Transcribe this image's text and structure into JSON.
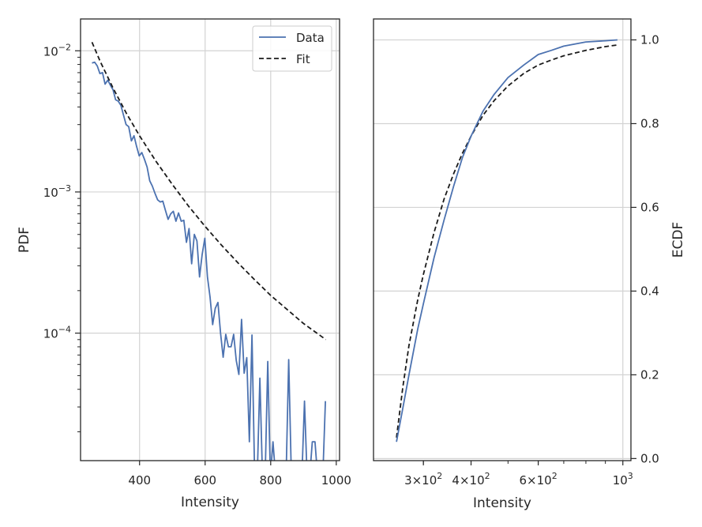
{
  "chart_data": [
    {
      "type": "line",
      "panel": "left",
      "xlabel": "Intensity",
      "ylabel": "PDF",
      "x_scale": "linear",
      "y_scale": "log",
      "xlim": [
        220,
        1010
      ],
      "ylim": [
        1.25e-05,
        0.0168
      ],
      "x_ticks": [
        400,
        600,
        800,
        1000
      ],
      "x_tick_labels": [
        "400",
        "600",
        "800",
        "1000"
      ],
      "y_ticks": [
        0.0001,
        0.001,
        0.01
      ],
      "y_tick_labels": [
        [
          "10",
          "−4"
        ],
        [
          "10",
          "−3"
        ],
        [
          "10",
          "−2"
        ]
      ],
      "grid": true,
      "legend": {
        "placement": "top-right",
        "entries": [
          "Data",
          "Fit"
        ]
      },
      "series": [
        {
          "name": "Data",
          "color": "#4c72b0",
          "style": "solid",
          "x": [
            255,
            263,
            271,
            279,
            287,
            295,
            303,
            311,
            319,
            327,
            335,
            343,
            351,
            359,
            367,
            375,
            383,
            391,
            399,
            407,
            415,
            423,
            431,
            439,
            447,
            455,
            463,
            471,
            479,
            487,
            495,
            503,
            511,
            519,
            527,
            535,
            543,
            551,
            559,
            567,
            575,
            583,
            591,
            599,
            607,
            615,
            623,
            631,
            639,
            647,
            655,
            663,
            671,
            679,
            687,
            695,
            703,
            711,
            719,
            727,
            735,
            743,
            751,
            759,
            767,
            775,
            783,
            791,
            799,
            807,
            815,
            823,
            831,
            839,
            847,
            855,
            863,
            871,
            879,
            887,
            895,
            903,
            911,
            919,
            927,
            935,
            943,
            951,
            959,
            967
          ],
          "y": [
            0.0082,
            0.0083,
            0.0078,
            0.0069,
            0.007,
            0.0058,
            0.0062,
            0.0057,
            0.0053,
            0.0045,
            0.0044,
            0.0041,
            0.0035,
            0.003,
            0.0029,
            0.0023,
            0.0025,
            0.0021,
            0.0018,
            0.0019,
            0.0017,
            0.0015,
            0.0012,
            0.0011,
            0.00098,
            0.00088,
            0.00085,
            0.00086,
            0.00074,
            0.00064,
            0.0007,
            0.00073,
            0.00062,
            0.00071,
            0.00062,
            0.00063,
            0.00044,
            0.00055,
            0.00031,
            0.0005,
            0.00045,
            0.00025,
            0.00036,
            0.00047,
            0.00025,
            0.00018,
            0.000115,
            0.00015,
            0.000165,
            0.0001,
            6.75e-05,
            9.8e-05,
            8e-05,
            8e-05,
            9.8e-05,
            6.4e-05,
            5.1e-05,
            0.000125,
            5.2e-05,
            6.7e-05,
            1.7e-05,
            9.7e-05,
            null,
            null,
            4.8e-05,
            null,
            null,
            6.3e-05,
            null,
            1.7e-05,
            null,
            null,
            null,
            null,
            null,
            6.5e-05,
            null,
            null,
            null,
            null,
            null,
            3.3e-05,
            null,
            null,
            1.7e-05,
            1.7e-05,
            null,
            null,
            null,
            3.3e-05
          ]
        },
        {
          "name": "Fit",
          "color": "#1a1a1a",
          "style": "dashed",
          "x": [
            255,
            280,
            320,
            360,
            400,
            450,
            500,
            550,
            600,
            650,
            700,
            750,
            800,
            850,
            900,
            968
          ],
          "y": [
            0.0115,
            0.0084,
            0.0054,
            0.0036,
            0.0025,
            0.00165,
            0.00113,
            0.00079,
            0.00057,
            0.00042,
            0.000315,
            0.00024,
            0.000185,
            0.000147,
            0.000117,
            9e-05
          ]
        }
      ]
    },
    {
      "type": "line",
      "panel": "right",
      "xlabel": "Intensity",
      "ylabel": "ECDF",
      "x_scale": "log",
      "y_scale": "linear",
      "xlim": [
        222,
        1050
      ],
      "ylim": [
        -0.005,
        1.05
      ],
      "x_ticks": [
        300,
        400,
        600,
        1000
      ],
      "x_tick_labels": [
        [
          "3×10",
          "2"
        ],
        [
          "4×10",
          "2"
        ],
        [
          "6×10",
          "2"
        ],
        [
          "10",
          "3"
        ]
      ],
      "y_ticks": [
        0.0,
        0.2,
        0.4,
        0.6,
        0.8,
        1.0
      ],
      "y_tick_labels": [
        "0.0",
        "0.2",
        "0.4",
        "0.6",
        "0.8",
        "1.0"
      ],
      "grid": true,
      "series": [
        {
          "name": "Data",
          "color": "#4c72b0",
          "style": "solid",
          "x": [
            255,
            265,
            275,
            290,
            300,
            320,
            340,
            360,
            380,
            400,
            430,
            460,
            500,
            550,
            600,
            650,
            700,
            800,
            900,
            968
          ],
          "y": [
            0.04,
            0.12,
            0.2,
            0.31,
            0.37,
            0.48,
            0.57,
            0.65,
            0.72,
            0.77,
            0.83,
            0.87,
            0.91,
            0.94,
            0.965,
            0.975,
            0.985,
            0.995,
            0.998,
            1.0
          ]
        },
        {
          "name": "Fit",
          "color": "#1a1a1a",
          "style": "dashed",
          "x": [
            255,
            265,
            275,
            290,
            300,
            320,
            340,
            360,
            380,
            400,
            430,
            460,
            500,
            550,
            600,
            650,
            700,
            800,
            900,
            968
          ],
          "y": [
            0.05,
            0.17,
            0.27,
            0.38,
            0.44,
            0.54,
            0.62,
            0.68,
            0.73,
            0.77,
            0.82,
            0.855,
            0.89,
            0.92,
            0.94,
            0.952,
            0.962,
            0.975,
            0.984,
            0.988
          ]
        }
      ]
    }
  ]
}
